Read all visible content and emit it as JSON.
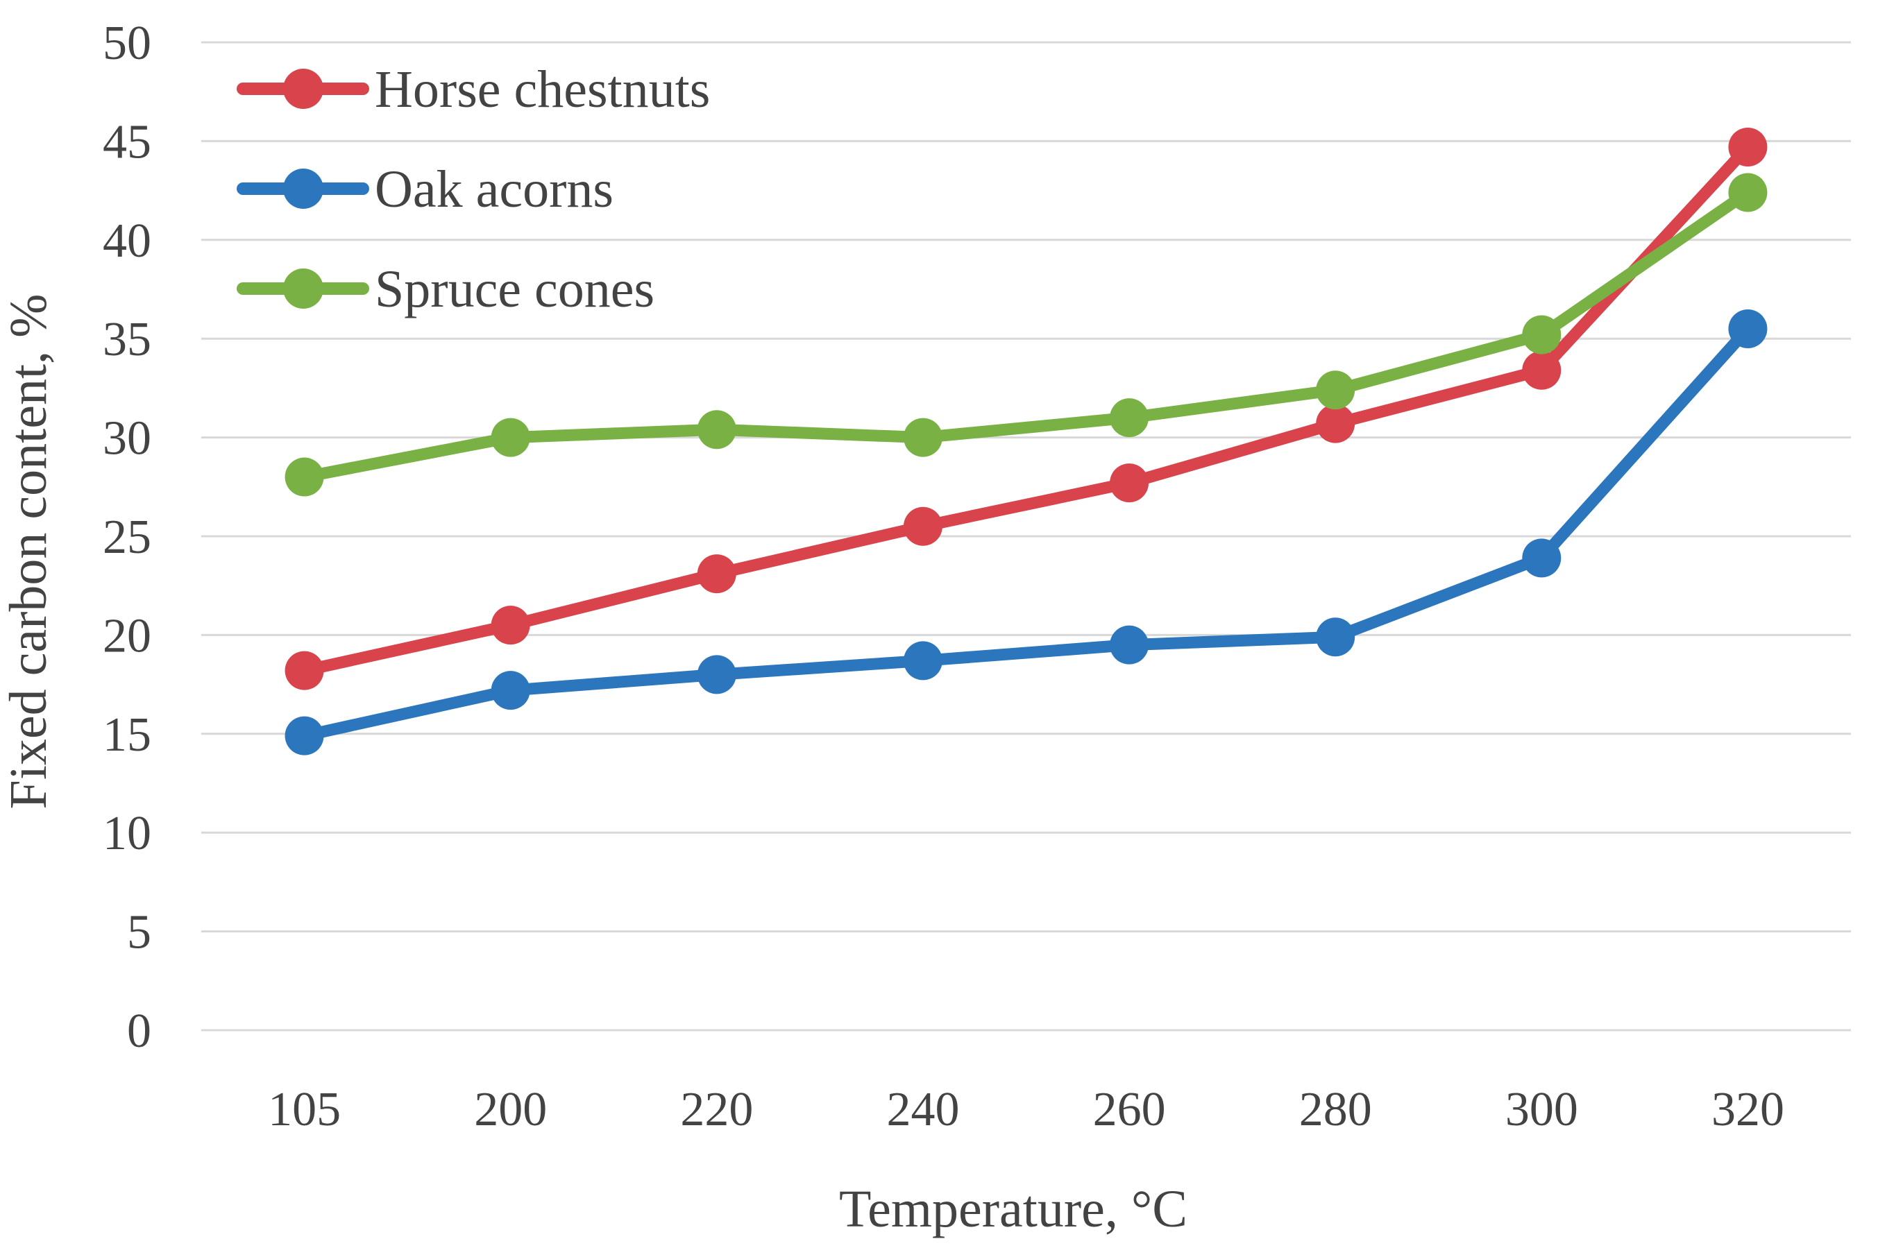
{
  "chart_data": {
    "type": "line",
    "title": "",
    "xlabel": "Temperature, °C",
    "ylabel": "Fixed carbon content, %",
    "categories": [
      "105",
      "200",
      "220",
      "240",
      "260",
      "280",
      "300",
      "320"
    ],
    "y_ticks": [
      0,
      5,
      10,
      15,
      20,
      25,
      30,
      35,
      40,
      45,
      50
    ],
    "ylim": [
      0,
      50
    ],
    "grid": "horizontal-only",
    "legend_position": "top-left-inside",
    "series": [
      {
        "name": "Horse chestnuts",
        "color": "#D9434B",
        "values": [
          18.2,
          20.5,
          23.1,
          25.5,
          27.7,
          30.7,
          33.4,
          44.7
        ]
      },
      {
        "name": "Oak acorns",
        "color": "#2B76BC",
        "values": [
          14.9,
          17.2,
          18.0,
          18.7,
          19.5,
          19.9,
          23.9,
          35.5
        ]
      },
      {
        "name": "Spruce cones",
        "color": "#7AB144",
        "values": [
          28.0,
          30.0,
          30.4,
          30.0,
          31.0,
          32.4,
          35.2,
          42.4
        ]
      }
    ]
  },
  "styles": {
    "text_color": "#434343",
    "grid_color": "#D8D8D8",
    "background": "#FFFFFF"
  }
}
